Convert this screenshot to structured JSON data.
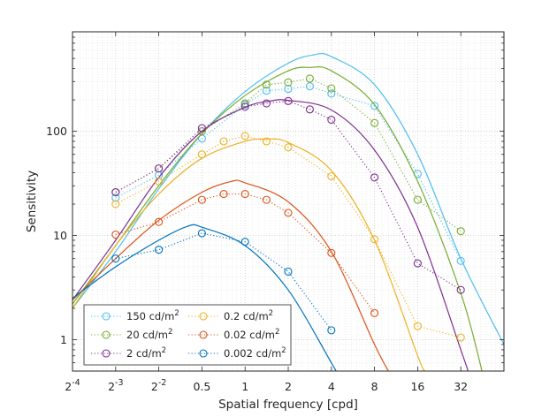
{
  "chart_data": {
    "type": "line",
    "xlabel": "Spatial frequency [cpd]",
    "ylabel": "Sensitivity",
    "x_scale": "log2",
    "y_scale": "log10",
    "xlim": [
      0.0625,
      64
    ],
    "ylim": [
      0.5,
      900
    ],
    "x_ticks": [
      {
        "value": 0.0625,
        "base": "2",
        "exp": "-4"
      },
      {
        "value": 0.125,
        "base": "2",
        "exp": "-3"
      },
      {
        "value": 0.25,
        "base": "2",
        "exp": "-2"
      },
      {
        "value": 0.5,
        "label": "0.5"
      },
      {
        "value": 1,
        "label": "1"
      },
      {
        "value": 2,
        "label": "2"
      },
      {
        "value": 4,
        "label": "4"
      },
      {
        "value": 8,
        "label": "8"
      },
      {
        "value": 16,
        "label": "16"
      },
      {
        "value": 32,
        "label": "32"
      }
    ],
    "y_ticks": [
      {
        "value": 1,
        "label": "1"
      },
      {
        "value": 10,
        "label": "10"
      },
      {
        "value": 100,
        "label": "100"
      }
    ],
    "grid": true,
    "minor_grid": true,
    "legend_position": "bottom-left",
    "legend_columns": 2,
    "series": [
      {
        "name": "150",
        "unit": "cd/m",
        "unit_exp": "2",
        "color": "#4DBEEE",
        "points": [
          [
            0.125,
            23
          ],
          [
            0.25,
            38
          ],
          [
            0.5,
            85
          ],
          [
            1,
            180
          ],
          [
            1.41,
            245
          ],
          [
            2,
            255
          ],
          [
            2.83,
            270
          ],
          [
            4,
            230
          ],
          [
            8,
            175
          ],
          [
            16,
            39
          ],
          [
            32,
            5.7
          ]
        ],
        "fit": [
          [
            0.0625,
            2.0
          ],
          [
            0.125,
            7
          ],
          [
            0.25,
            28
          ],
          [
            0.5,
            95
          ],
          [
            1,
            240
          ],
          [
            2,
            450
          ],
          [
            3,
            540
          ],
          [
            4,
            520
          ],
          [
            8,
            280
          ],
          [
            16,
            60
          ],
          [
            32,
            6
          ],
          [
            64,
            0.9
          ]
        ]
      },
      {
        "name": "20",
        "unit": "cd/m",
        "unit_exp": "2",
        "color": "#77AC30",
        "points": [
          [
            0.125,
            26
          ],
          [
            0.25,
            44
          ],
          [
            0.5,
            100
          ],
          [
            1,
            185
          ],
          [
            1.41,
            280
          ],
          [
            2,
            295
          ],
          [
            2.83,
            320
          ],
          [
            4,
            258
          ],
          [
            8,
            120
          ],
          [
            16,
            22
          ],
          [
            32,
            11
          ]
        ],
        "fit": [
          [
            0.0625,
            2.2
          ],
          [
            0.125,
            8
          ],
          [
            0.25,
            30
          ],
          [
            0.5,
            95
          ],
          [
            1,
            220
          ],
          [
            2,
            380
          ],
          [
            2.83,
            410
          ],
          [
            4,
            380
          ],
          [
            8,
            180
          ],
          [
            16,
            33
          ],
          [
            32,
            2.8
          ],
          [
            45,
            0.5
          ]
        ]
      },
      {
        "name": "2",
        "unit": "cd/m",
        "unit_exp": "2",
        "color": "#7E2F8E",
        "points": [
          [
            0.125,
            26
          ],
          [
            0.25,
            44
          ],
          [
            0.5,
            107
          ],
          [
            1,
            172
          ],
          [
            1.41,
            185
          ],
          [
            2,
            195
          ],
          [
            2.83,
            162
          ],
          [
            4,
            129
          ],
          [
            8,
            36
          ],
          [
            16,
            5.4
          ],
          [
            32,
            3.0
          ]
        ],
        "fit": [
          [
            0.0625,
            2.4
          ],
          [
            0.125,
            9
          ],
          [
            0.25,
            36
          ],
          [
            0.5,
            100
          ],
          [
            1,
            170
          ],
          [
            1.5,
            195
          ],
          [
            2,
            198
          ],
          [
            4,
            160
          ],
          [
            8,
            66
          ],
          [
            16,
            12
          ],
          [
            32,
            0.8
          ],
          [
            36,
            0.5
          ]
        ]
      },
      {
        "name": "0.2",
        "unit": "cd/m",
        "unit_exp": "2",
        "color": "#EDB120",
        "points": [
          [
            0.125,
            20
          ],
          [
            0.25,
            33
          ],
          [
            0.5,
            60
          ],
          [
            0.71,
            80
          ],
          [
            1,
            90
          ],
          [
            1.41,
            80
          ],
          [
            2,
            70
          ],
          [
            4,
            37
          ],
          [
            8,
            9.2
          ],
          [
            16,
            1.35
          ],
          [
            32,
            1.05
          ]
        ],
        "fit": [
          [
            0.0625,
            2.0
          ],
          [
            0.125,
            8
          ],
          [
            0.25,
            25
          ],
          [
            0.5,
            55
          ],
          [
            1,
            80
          ],
          [
            1.41,
            84
          ],
          [
            2,
            78
          ],
          [
            4,
            42
          ],
          [
            8,
            9
          ],
          [
            16,
            0.7
          ],
          [
            18,
            0.5
          ]
        ]
      },
      {
        "name": "0.02",
        "unit": "cd/m",
        "unit_exp": "2",
        "color": "#D95319",
        "points": [
          [
            0.125,
            10.2
          ],
          [
            0.25,
            13.5
          ],
          [
            0.5,
            22
          ],
          [
            0.71,
            25
          ],
          [
            1,
            25
          ],
          [
            1.41,
            22
          ],
          [
            2,
            16.5
          ],
          [
            4,
            6.8
          ],
          [
            8,
            1.8
          ]
        ],
        "fit": [
          [
            0.0625,
            2.4
          ],
          [
            0.125,
            6
          ],
          [
            0.25,
            14
          ],
          [
            0.5,
            26
          ],
          [
            0.8,
            33
          ],
          [
            1,
            32
          ],
          [
            2,
            21
          ],
          [
            4,
            7
          ],
          [
            8,
            0.9
          ],
          [
            10,
            0.5
          ]
        ]
      },
      {
        "name": "0.002",
        "unit": "cd/m",
        "unit_exp": "2",
        "color": "#0072BD",
        "points": [
          [
            0.125,
            6
          ],
          [
            0.25,
            7.3
          ],
          [
            0.5,
            10.5
          ],
          [
            1,
            8.7
          ],
          [
            2,
            4.5
          ],
          [
            4,
            1.23
          ]
        ],
        "fit": [
          [
            0.0625,
            2.5
          ],
          [
            0.125,
            5
          ],
          [
            0.25,
            9
          ],
          [
            0.4,
            12.3
          ],
          [
            0.5,
            12
          ],
          [
            1,
            8
          ],
          [
            2,
            3
          ],
          [
            4,
            0.6
          ],
          [
            4.3,
            0.5
          ]
        ]
      }
    ]
  }
}
